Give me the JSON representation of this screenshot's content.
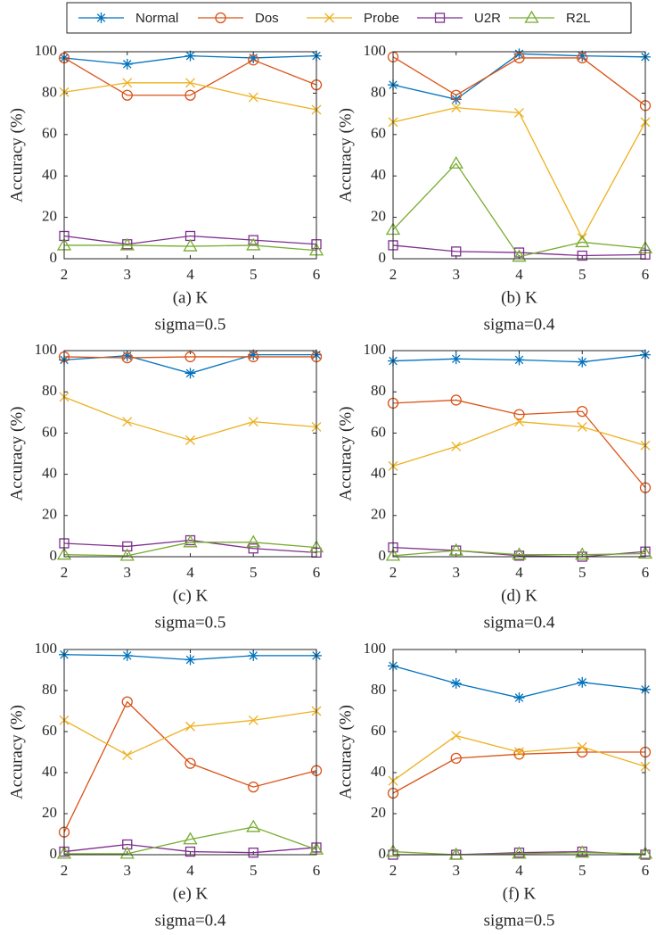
{
  "chart_data": [
    {
      "type": "line",
      "xlabel": "(a) K",
      "caption": "sigma=0.5",
      "ylabel": "Accuracy (%)",
      "x": [
        2,
        3,
        4,
        5,
        6
      ],
      "xlim": [
        2,
        6
      ],
      "xticks": [
        2,
        3,
        4,
        5,
        6
      ],
      "ylim": [
        0,
        100
      ],
      "yticks": [
        0,
        20,
        40,
        60,
        80,
        100
      ],
      "series": [
        {
          "name": "Normal",
          "color": "#0072BD",
          "marker": "asterisk",
          "values": [
            97,
            94,
            98,
            97,
            98
          ]
        },
        {
          "name": "Dos",
          "color": "#D95319",
          "marker": "circle",
          "values": [
            97,
            79,
            79,
            96,
            84
          ]
        },
        {
          "name": "Probe",
          "color": "#EDB120",
          "marker": "x",
          "values": [
            80.5,
            85,
            85,
            78,
            72
          ]
        },
        {
          "name": "U2R",
          "color": "#7E2F8E",
          "marker": "square",
          "values": [
            11,
            7,
            11,
            9,
            7
          ]
        },
        {
          "name": "R2L",
          "color": "#77AC30",
          "marker": "triangle",
          "values": [
            6.5,
            6.5,
            6,
            6.5,
            4
          ]
        }
      ]
    },
    {
      "type": "line",
      "xlabel": "(b) K",
      "caption": "sigma=0.4",
      "ylabel": "Accuracy (%)",
      "x": [
        2,
        3,
        4,
        5,
        6
      ],
      "xlim": [
        2,
        6
      ],
      "xticks": [
        2,
        3,
        4,
        5,
        6
      ],
      "ylim": [
        0,
        100
      ],
      "yticks": [
        0,
        20,
        40,
        60,
        80,
        100
      ],
      "series": [
        {
          "name": "Normal",
          "color": "#0072BD",
          "marker": "asterisk",
          "values": [
            84,
            77,
            99,
            98,
            97.5
          ]
        },
        {
          "name": "Dos",
          "color": "#D95319",
          "marker": "circle",
          "values": [
            97.5,
            79,
            97,
            97,
            74
          ]
        },
        {
          "name": "Probe",
          "color": "#EDB120",
          "marker": "x",
          "values": [
            66,
            73,
            70.5,
            10,
            66
          ]
        },
        {
          "name": "U2R",
          "color": "#7E2F8E",
          "marker": "square",
          "values": [
            6.5,
            3.5,
            3,
            1.5,
            2
          ]
        },
        {
          "name": "R2L",
          "color": "#77AC30",
          "marker": "triangle",
          "values": [
            14,
            46,
            1,
            8,
            5
          ]
        }
      ]
    },
    {
      "type": "line",
      "xlabel": "(c) K",
      "caption": "sigma=0.5",
      "ylabel": "Accuracy (%)",
      "x": [
        2,
        3,
        4,
        5,
        6
      ],
      "xlim": [
        2,
        6
      ],
      "xticks": [
        2,
        3,
        4,
        5,
        6
      ],
      "ylim": [
        0,
        100
      ],
      "yticks": [
        0,
        20,
        40,
        60,
        80,
        100
      ],
      "series": [
        {
          "name": "Normal",
          "color": "#0072BD",
          "marker": "asterisk",
          "values": [
            95.5,
            97.5,
            89,
            98,
            98
          ]
        },
        {
          "name": "Dos",
          "color": "#D95319",
          "marker": "circle",
          "values": [
            97,
            96.5,
            97,
            97,
            97
          ]
        },
        {
          "name": "Probe",
          "color": "#EDB120",
          "marker": "x",
          "values": [
            77.5,
            65.5,
            56.5,
            65.5,
            63
          ]
        },
        {
          "name": "U2R",
          "color": "#7E2F8E",
          "marker": "square",
          "values": [
            6.5,
            5,
            8,
            4,
            2
          ]
        },
        {
          "name": "R2L",
          "color": "#77AC30",
          "marker": "triangle",
          "values": [
            1,
            0.5,
            7,
            7,
            4.5
          ]
        }
      ]
    },
    {
      "type": "line",
      "xlabel": "(d) K",
      "caption": "sigma=0.4",
      "ylabel": "Accuracy (%)",
      "x": [
        2,
        3,
        4,
        5,
        6
      ],
      "xlim": [
        2,
        6
      ],
      "xticks": [
        2,
        3,
        4,
        5,
        6
      ],
      "ylim": [
        0,
        100
      ],
      "yticks": [
        0,
        20,
        40,
        60,
        80,
        100
      ],
      "series": [
        {
          "name": "Normal",
          "color": "#0072BD",
          "marker": "asterisk",
          "values": [
            95,
            96,
            95.5,
            94.5,
            98
          ]
        },
        {
          "name": "Dos",
          "color": "#D95319",
          "marker": "circle",
          "values": [
            74.5,
            76,
            69,
            70.5,
            33.5
          ]
        },
        {
          "name": "Probe",
          "color": "#EDB120",
          "marker": "x",
          "values": [
            44,
            53.5,
            65.5,
            63,
            54
          ]
        },
        {
          "name": "U2R",
          "color": "#7E2F8E",
          "marker": "square",
          "values": [
            4.5,
            3,
            0.5,
            0,
            2.5
          ]
        },
        {
          "name": "R2L",
          "color": "#77AC30",
          "marker": "triangle",
          "values": [
            0.5,
            3,
            1,
            1,
            1.5
          ]
        }
      ]
    },
    {
      "type": "line",
      "xlabel": "(e) K",
      "caption": "sigma=0.4",
      "ylabel": "Accuracy (%)",
      "x": [
        2,
        3,
        4,
        5,
        6
      ],
      "xlim": [
        2,
        6
      ],
      "xticks": [
        2,
        3,
        4,
        5,
        6
      ],
      "ylim": [
        0,
        100
      ],
      "yticks": [
        0,
        20,
        40,
        60,
        80,
        100
      ],
      "series": [
        {
          "name": "Normal",
          "color": "#0072BD",
          "marker": "asterisk",
          "values": [
            97.5,
            97,
            95,
            97,
            97
          ]
        },
        {
          "name": "Dos",
          "color": "#D95319",
          "marker": "circle",
          "values": [
            11,
            74.5,
            44.5,
            33,
            41
          ]
        },
        {
          "name": "Probe",
          "color": "#EDB120",
          "marker": "x",
          "values": [
            65.5,
            48.5,
            62.5,
            65.5,
            70
          ]
        },
        {
          "name": "U2R",
          "color": "#7E2F8E",
          "marker": "square",
          "values": [
            1.5,
            5,
            1.5,
            1,
            3.5
          ]
        },
        {
          "name": "R2L",
          "color": "#77AC30",
          "marker": "triangle",
          "values": [
            0.5,
            0.5,
            7.5,
            13.5,
            2.5
          ]
        }
      ]
    },
    {
      "type": "line",
      "xlabel": "(f) K",
      "caption": "sigma=0.5",
      "ylabel": "Accuracy (%)",
      "x": [
        2,
        3,
        4,
        5,
        6
      ],
      "xlim": [
        2,
        6
      ],
      "xticks": [
        2,
        3,
        4,
        5,
        6
      ],
      "ylim": [
        0,
        100
      ],
      "yticks": [
        0,
        20,
        40,
        60,
        80,
        100
      ],
      "series": [
        {
          "name": "Normal",
          "color": "#0072BD",
          "marker": "asterisk",
          "values": [
            92,
            83.5,
            76.5,
            84,
            80.5
          ]
        },
        {
          "name": "Dos",
          "color": "#D95319",
          "marker": "circle",
          "values": [
            30,
            47,
            49,
            50,
            50
          ]
        },
        {
          "name": "Probe",
          "color": "#EDB120",
          "marker": "x",
          "values": [
            36,
            58,
            50,
            52.5,
            43
          ]
        },
        {
          "name": "U2R",
          "color": "#7E2F8E",
          "marker": "square",
          "values": [
            0,
            0,
            1,
            1.5,
            0
          ]
        },
        {
          "name": "R2L",
          "color": "#77AC30",
          "marker": "triangle",
          "values": [
            1.5,
            0,
            0.5,
            1,
            0.5
          ]
        }
      ]
    }
  ]
}
